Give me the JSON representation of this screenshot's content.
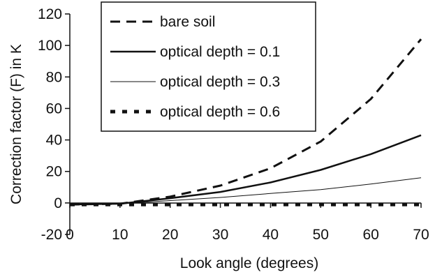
{
  "chart_data": {
    "type": "line",
    "title": "",
    "xlabel": "Look angle (degrees)",
    "ylabel": "Correction factor (F) in K",
    "xlim": [
      0,
      70
    ],
    "ylim": [
      -20,
      120
    ],
    "x_ticks": [
      "0",
      "10",
      "20",
      "30",
      "40",
      "50",
      "60",
      "70"
    ],
    "y_ticks": [
      "-20",
      "0",
      "20",
      "40",
      "60",
      "80",
      "100",
      "120"
    ],
    "grid": false,
    "legend_position": "top-left",
    "x": [
      0,
      10,
      20,
      30,
      40,
      50,
      60,
      70
    ],
    "series": [
      {
        "name": "bare soil",
        "style": "dashed",
        "color": "#111111",
        "values": [
          -1,
          -0.5,
          4,
          11,
          22,
          39,
          66,
          104
        ]
      },
      {
        "name": "optical depth = 0.1",
        "style": "solid-thick",
        "color": "#111111",
        "values": [
          -1,
          -0.5,
          3,
          7,
          13,
          21,
          31,
          43
        ]
      },
      {
        "name": "optical depth = 0.3",
        "style": "solid-thin",
        "color": "#111111",
        "values": [
          -1,
          -0.5,
          1.5,
          3.5,
          6,
          8.5,
          12,
          16
        ]
      },
      {
        "name": "optical depth = 0.6",
        "style": "dotted-thick",
        "color": "#111111",
        "values": [
          -1,
          -1,
          -1,
          -1,
          -1,
          -1,
          -1,
          -1
        ]
      }
    ]
  }
}
